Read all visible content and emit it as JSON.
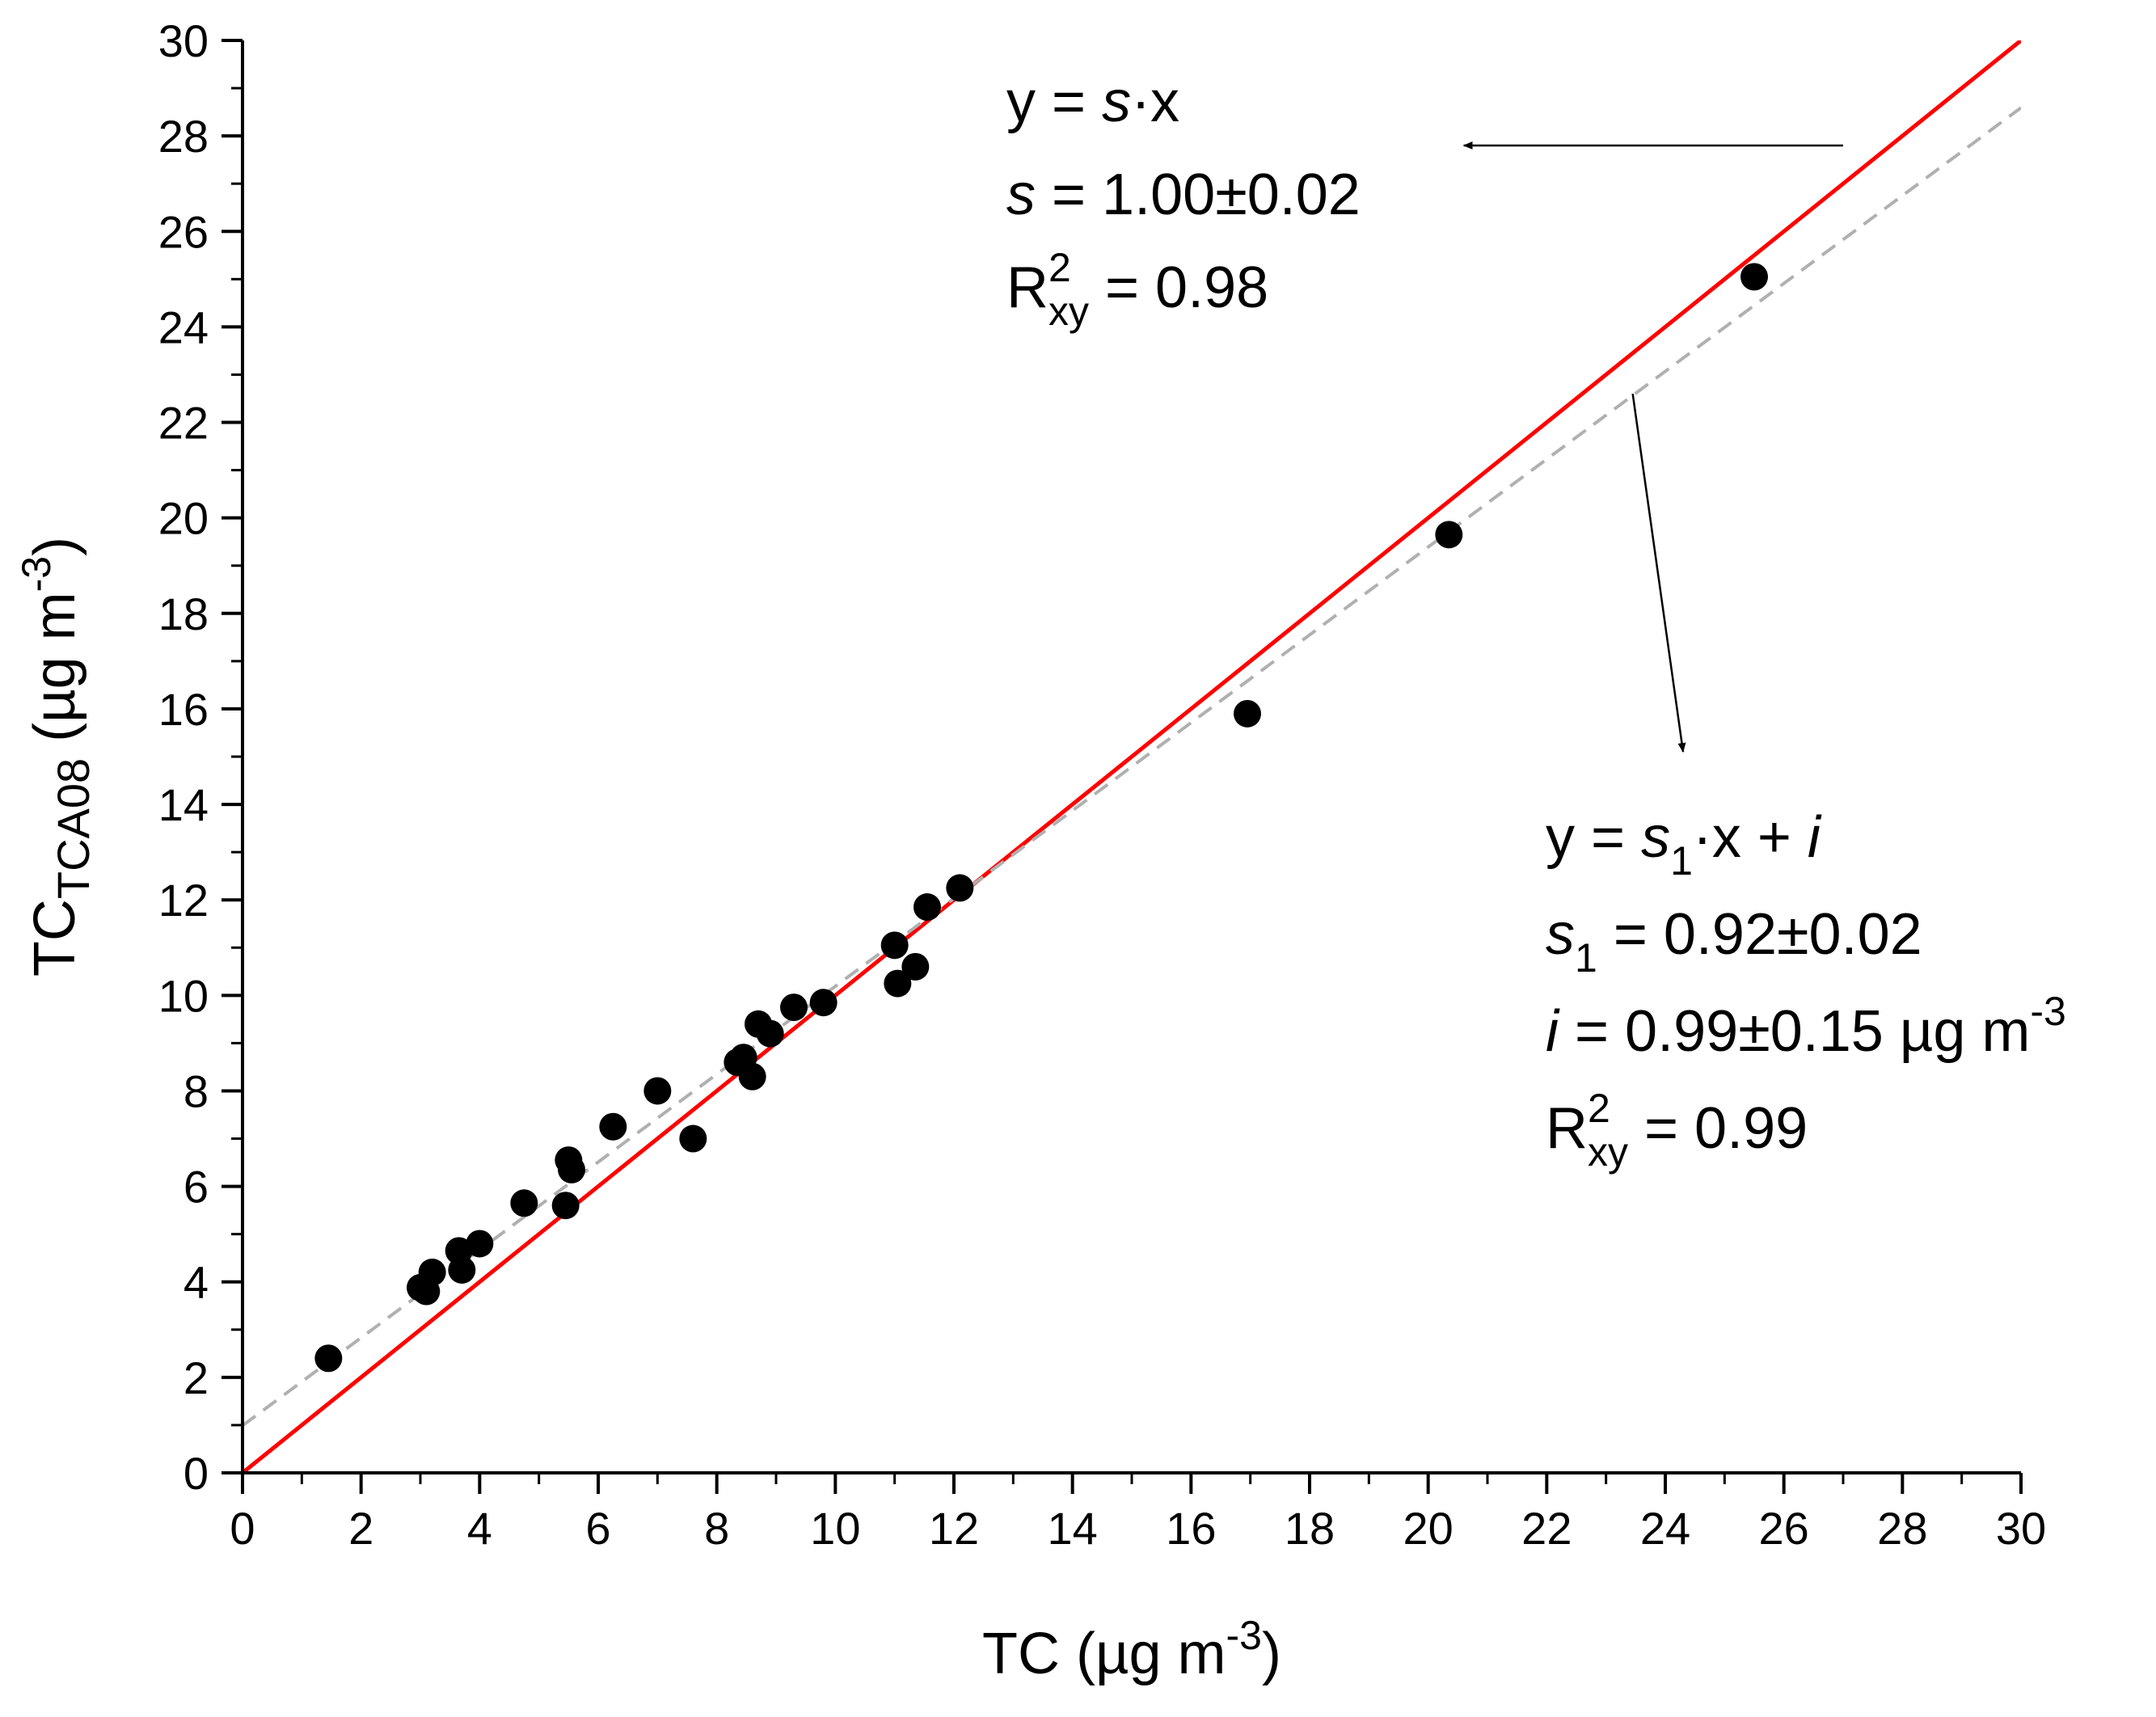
{
  "chart_data": {
    "type": "scatter",
    "xlabel": {
      "main": "TC (µg m",
      "sup": "-3",
      "end": ")"
    },
    "ylabel": {
      "main": "TC",
      "sub": "TCA08",
      "rest": " (µg m",
      "sup": "-3",
      "end": ")"
    },
    "xlim": [
      0,
      30
    ],
    "ylim": [
      0,
      30
    ],
    "x_ticks": [
      "0",
      "2",
      "4",
      "6",
      "8",
      "10",
      "12",
      "14",
      "16",
      "18",
      "20",
      "22",
      "24",
      "26",
      "28",
      "30"
    ],
    "y_ticks": [
      "0",
      "2",
      "4",
      "6",
      "8",
      "10",
      "12",
      "14",
      "16",
      "18",
      "20",
      "22",
      "24",
      "26",
      "28",
      "30"
    ],
    "grid": false,
    "series": [
      {
        "marker": "circle",
        "color": "#000000",
        "points": [
          [
            1.45,
            2.4
          ],
          [
            3.0,
            3.88
          ],
          [
            3.1,
            3.8
          ],
          [
            3.2,
            4.2
          ],
          [
            3.65,
            4.65
          ],
          [
            3.7,
            4.25
          ],
          [
            4.0,
            4.8
          ],
          [
            4.75,
            5.65
          ],
          [
            5.45,
            5.6
          ],
          [
            5.5,
            6.55
          ],
          [
            5.55,
            6.35
          ],
          [
            6.25,
            7.25
          ],
          [
            7.0,
            8.0
          ],
          [
            7.6,
            7.0
          ],
          [
            8.35,
            8.6
          ],
          [
            8.45,
            8.7
          ],
          [
            8.6,
            8.3
          ],
          [
            8.7,
            9.4
          ],
          [
            8.9,
            9.2
          ],
          [
            9.3,
            9.75
          ],
          [
            9.8,
            9.85
          ],
          [
            11.0,
            11.05
          ],
          [
            11.05,
            10.25
          ],
          [
            11.35,
            10.6
          ],
          [
            11.55,
            11.85
          ],
          [
            12.1,
            12.25
          ],
          [
            16.95,
            15.9
          ],
          [
            20.35,
            19.65
          ],
          [
            25.5,
            25.05
          ]
        ]
      }
    ],
    "fits": [
      {
        "style": "solid",
        "color": "#ff0000",
        "slope": 1.0,
        "intercept": 0.0
      },
      {
        "style": "dashed",
        "color": "#b0b0b0",
        "slope": 0.92,
        "intercept": 0.99
      }
    ],
    "annotations": [
      {
        "lines": [
          {
            "parts": [
              {
                "t": "y = "
              },
              {
                "t": "s",
                "i": true
              },
              {
                "t": "·x"
              }
            ]
          },
          {
            "parts": [
              {
                "t": "s",
                "i": true
              },
              {
                "t": " = 1.00±0.02"
              }
            ]
          },
          {
            "parts": [
              {
                "t": "R"
              },
              {
                "t": "2",
                "sup": true
              },
              {
                "t": "xy",
                "sub": true
              },
              {
                "t": " = 0.98"
              }
            ]
          }
        ],
        "arrow_from": [
          27.0,
          27.8
        ],
        "arrow_to": [
          20.6,
          27.8
        ]
      },
      {
        "lines": [
          {
            "parts": [
              {
                "t": "y = "
              },
              {
                "t": "s",
                "i": true
              },
              {
                "t": "1",
                "sub": true
              },
              {
                "t": "·x + "
              },
              {
                "t": "i",
                "i": true
              }
            ]
          },
          {
            "parts": [
              {
                "t": "s",
                "i": true
              },
              {
                "t": "1",
                "sub": true
              },
              {
                "t": " = 0.92±0.02"
              }
            ]
          },
          {
            "parts": [
              {
                "t": "i",
                "i": true
              },
              {
                "t": " = 0.99±0.15 µg m"
              },
              {
                "t": "-3",
                "sup": true
              }
            ]
          },
          {
            "parts": [
              {
                "t": "R"
              },
              {
                "t": "2",
                "sup": true
              },
              {
                "t": "xy",
                "sub": true
              },
              {
                "t": " = 0.99"
              }
            ]
          }
        ],
        "arrow_from": [
          23.45,
          22.6
        ],
        "arrow_to": [
          24.3,
          15.1
        ]
      }
    ]
  }
}
